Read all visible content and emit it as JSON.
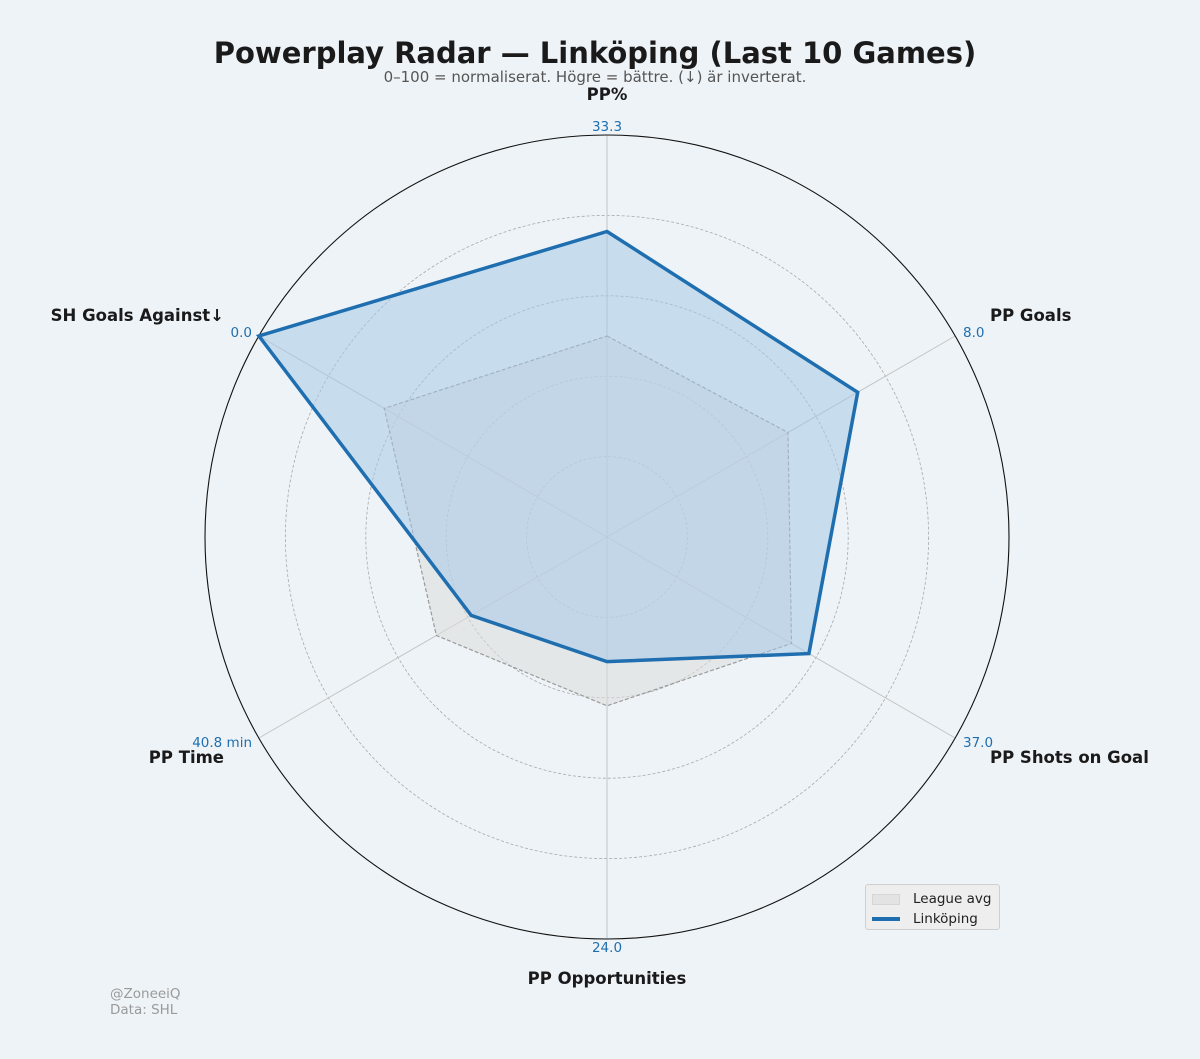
{
  "title": "Powerplay Radar — Linköping (Last 10 Games)",
  "subtitle": "0–100 = normaliserat. Högre = bättre. (↓) är inverterat.",
  "credit": {
    "handle": "@ZoneeiQ",
    "source": "Data: SHL"
  },
  "colors": {
    "team": "#1f6fb0",
    "team_fill": "#a8c8e6",
    "league_fill": "#dcdcdc",
    "league_line": "#9a9a9a",
    "axis_max_label": "#1f6fb0"
  },
  "chart_data": {
    "type": "radar",
    "scale": [
      0,
      100
    ],
    "rings": [
      20,
      40,
      60,
      80,
      100
    ],
    "grid": true,
    "legend_position": "bottom-right",
    "axes": [
      {
        "label": "PP%",
        "max_label": "33.3"
      },
      {
        "label": "PP Goals",
        "max_label": "8.0"
      },
      {
        "label": "PP Shots on Goal",
        "max_label": "37.0"
      },
      {
        "label": "PP Opportunities",
        "max_label": "24.0"
      },
      {
        "label": "PP Time",
        "max_label": "40.8 min"
      },
      {
        "label": "SH Goals Against↓",
        "max_label": "0.0"
      }
    ],
    "series": [
      {
        "name": "League avg",
        "style": "fill",
        "values": [
          50,
          52,
          53,
          42,
          49,
          64
        ]
      },
      {
        "name": "Linköping",
        "style": "line",
        "values": [
          76,
          72,
          58,
          31,
          39,
          100
        ]
      }
    ]
  }
}
